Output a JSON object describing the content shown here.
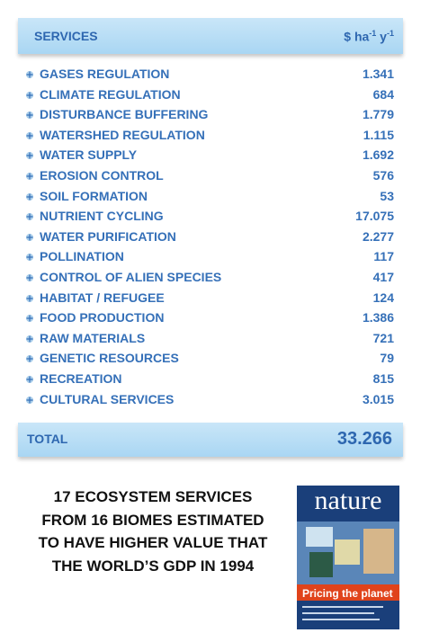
{
  "header": {
    "title": "SERVICES",
    "unit": [
      "$ ha",
      "-1",
      " y",
      "-1"
    ]
  },
  "table": {
    "rows": [
      [
        "GASES REGULATION",
        "1.341"
      ],
      [
        "CLIMATE REGULATION",
        "684"
      ],
      [
        "DISTURBANCE BUFFERING",
        "1.779"
      ],
      [
        "WATERSHED REGULATION",
        "1.115"
      ],
      [
        "WATER SUPPLY",
        "1.692"
      ],
      [
        "EROSION CONTROL",
        "576"
      ],
      [
        "SOIL FORMATION",
        "53"
      ],
      [
        "NUTRIENT CYCLING",
        "17.075"
      ],
      [
        "WATER PURIFICATION",
        "2.277"
      ],
      [
        "POLLINATION",
        "117"
      ],
      [
        "CONTROL OF ALIEN SPECIES",
        "417"
      ],
      [
        "HABITAT / REFUGEE",
        "124"
      ],
      [
        "FOOD PRODUCTION",
        "1.386"
      ],
      [
        "RAW MATERIALS",
        "721"
      ],
      [
        "GENETIC RESOURCES",
        "79"
      ],
      [
        "RECREATION",
        "815"
      ],
      [
        "CULTURAL SERVICES",
        "3.015"
      ]
    ]
  },
  "total": {
    "label": "TOTAL",
    "value": "33.266"
  },
  "caption": [
    "17 ECOSYSTEM SERVICES",
    "FROM 16 BIOMES ESTIMATED",
    "TO HAVE HIGHER VALUE THAT",
    "THE WORLD’S GDP IN 1994"
  ],
  "cover": {
    "title": "nature",
    "headline": "Pricing the planet"
  }
}
